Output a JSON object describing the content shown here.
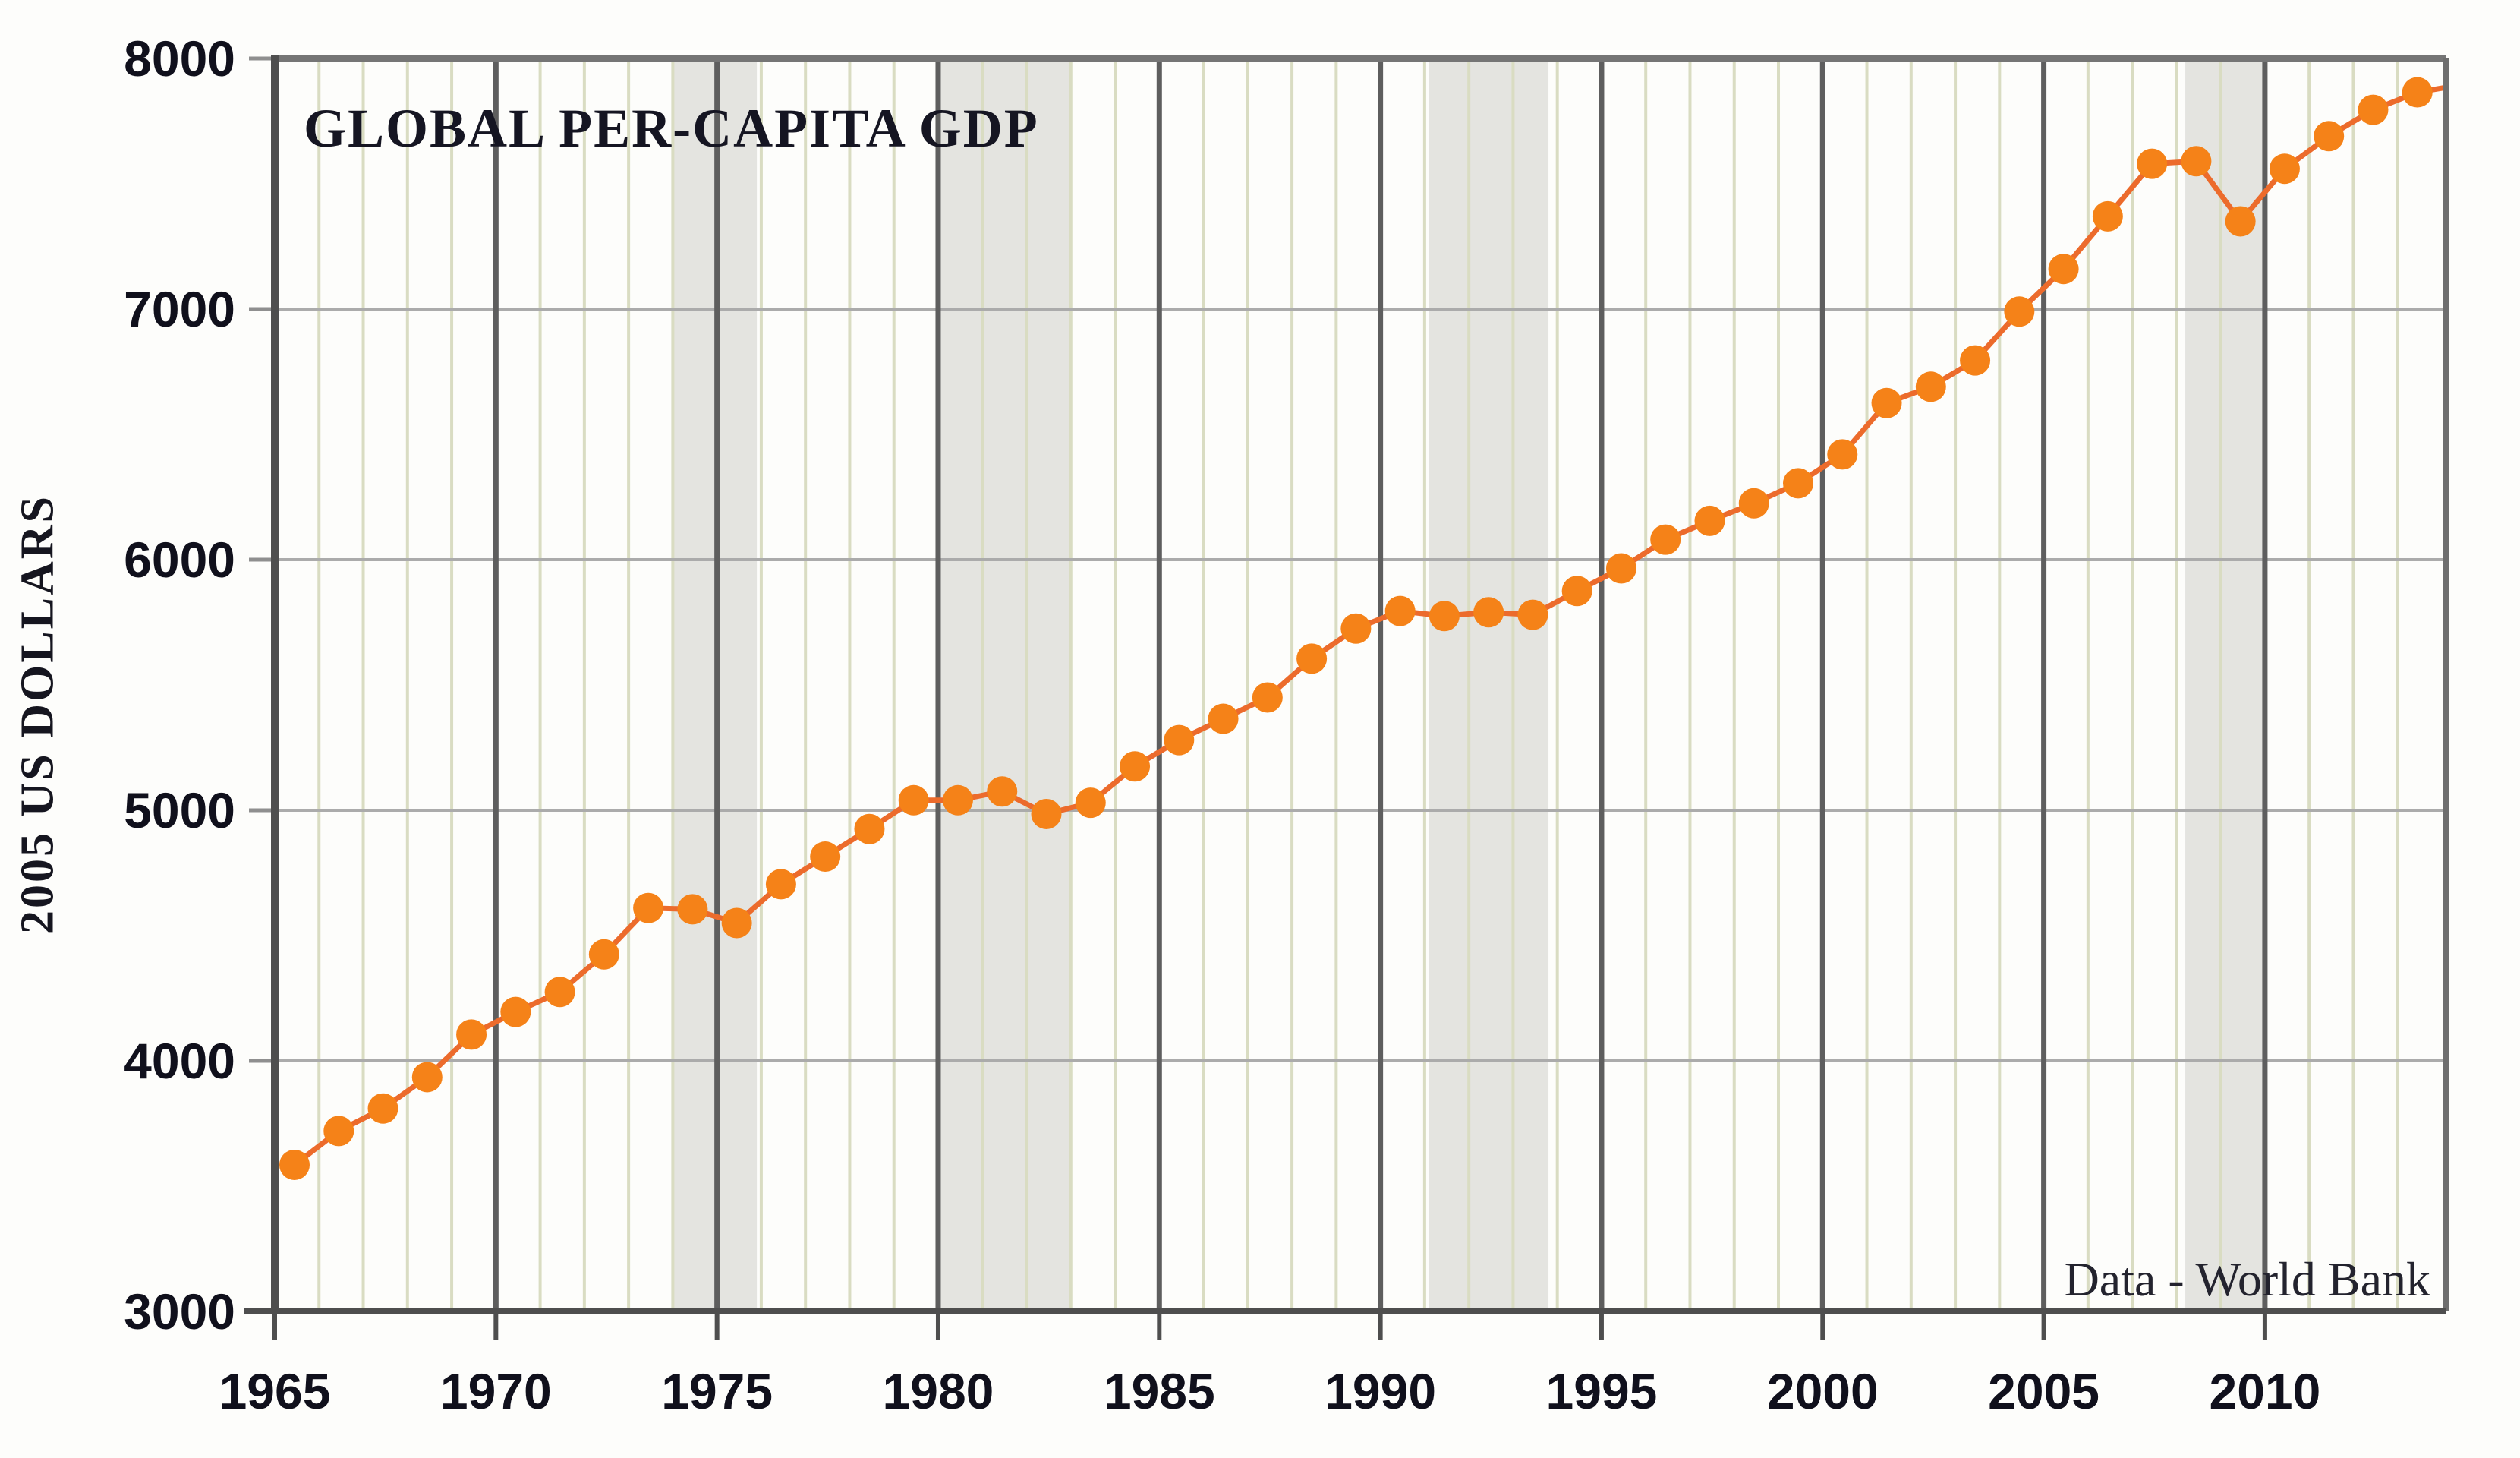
{
  "title": "GLOBAL PER-CAPITA GDP",
  "source_note": "Data - World Bank",
  "y_axis_title": "2005 US DOLLARS",
  "colors": {
    "background": "#fdfdfb",
    "marker_orange": "#f58218",
    "line_orange": "#ec6b2c",
    "recession_band_gray": "#e4e4e0",
    "year_gridline_olive": "#d9dcc2",
    "h_gridline_gray": "#ababab",
    "five_year_gridline_dark": "#5e5e5e",
    "axis_dark": "#4e4e4e",
    "top_border": "#757575",
    "right_border": "#6e6e6e",
    "tick_gray": "#8f8f8f",
    "text_black": "#10101c"
  },
  "chart_data": {
    "type": "line",
    "title": "GLOBAL PER-CAPITA GDP",
    "xlabel": "",
    "ylabel": "2005 US DOLLARS",
    "annotation": "Data - World Bank",
    "series_name": "Global per-capita GDP, constant 2005 US dollars",
    "legend_position": "none",
    "grid": "yearly vertical olive lines, 5-year dark vertical lines, horizontal gray lines each 1000",
    "xlim": [
      1965,
      2014.1
    ],
    "ylim": [
      3000,
      8000
    ],
    "x_ticks": [
      1965,
      1970,
      1975,
      1980,
      1985,
      1990,
      1995,
      2000,
      2005,
      2010
    ],
    "y_ticks": [
      3000,
      4000,
      5000,
      6000,
      7000,
      8000
    ],
    "recession_bands_years": [
      [
        1974.0,
        1975.9
      ],
      [
        1980.0,
        1983.0
      ],
      [
        1991.1,
        1993.8
      ],
      [
        2008.2,
        2010.0
      ]
    ],
    "x": [
      1965,
      1966,
      1967,
      1968,
      1969,
      1970,
      1971,
      1972,
      1973,
      1974,
      1975,
      1976,
      1977,
      1978,
      1979,
      1980,
      1981,
      1982,
      1983,
      1984,
      1985,
      1986,
      1987,
      1988,
      1989,
      1990,
      1991,
      1992,
      1993,
      1994,
      1995,
      1996,
      1997,
      1998,
      1999,
      2000,
      2001,
      2002,
      2003,
      2004,
      2005,
      2006,
      2007,
      2008,
      2009,
      2010,
      2011,
      2012,
      2013,
      2014
    ],
    "values": [
      3585,
      3720,
      3810,
      3935,
      4105,
      4195,
      4275,
      4425,
      4610,
      4605,
      4550,
      4705,
      4815,
      4925,
      5040,
      5040,
      5075,
      4985,
      5030,
      5175,
      5280,
      5365,
      5450,
      5605,
      5725,
      5795,
      5775,
      5790,
      5780,
      5875,
      5965,
      6080,
      6155,
      6225,
      6305,
      6420,
      6625,
      6690,
      6795,
      6990,
      7160,
      7370,
      7580,
      7590,
      7350,
      7560,
      7690,
      7795,
      7865,
      7895
    ]
  }
}
